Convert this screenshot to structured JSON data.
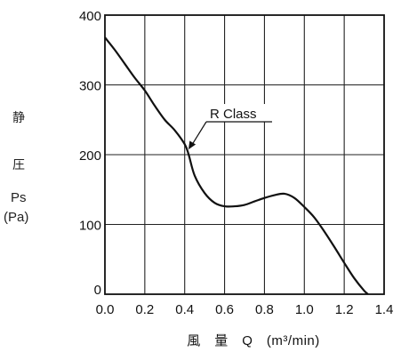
{
  "chart_data": {
    "type": "line",
    "xlabel": "風　量　Q　(m³/min)",
    "ylabel_lines": [
      "静",
      "圧",
      "Ps",
      "(Pa)"
    ],
    "xlim": [
      0.0,
      1.4
    ],
    "ylim": [
      0,
      400
    ],
    "x_ticks": [
      "0.0",
      "0.2",
      "0.4",
      "0.6",
      "0.8",
      "1.0",
      "1.2",
      "1.4"
    ],
    "y_ticks": [
      "0",
      "100",
      "200",
      "300",
      "400"
    ],
    "grid": true,
    "series": [
      {
        "name": "R Class",
        "x": [
          0.0,
          0.05,
          0.1,
          0.15,
          0.2,
          0.25,
          0.3,
          0.35,
          0.4,
          0.42,
          0.45,
          0.5,
          0.55,
          0.6,
          0.65,
          0.7,
          0.75,
          0.8,
          0.85,
          0.9,
          0.95,
          1.0,
          1.05,
          1.1,
          1.15,
          1.2,
          1.25,
          1.3,
          1.32
        ],
        "y": [
          368,
          350,
          330,
          310,
          292,
          270,
          250,
          235,
          215,
          200,
          170,
          145,
          131,
          126,
          126,
          128,
          133,
          138,
          142,
          144,
          138,
          125,
          110,
          90,
          68,
          45,
          23,
          5,
          0
        ]
      }
    ],
    "annotation": {
      "text": "R Class",
      "points_to": [
        0.41,
        205
      ]
    }
  }
}
